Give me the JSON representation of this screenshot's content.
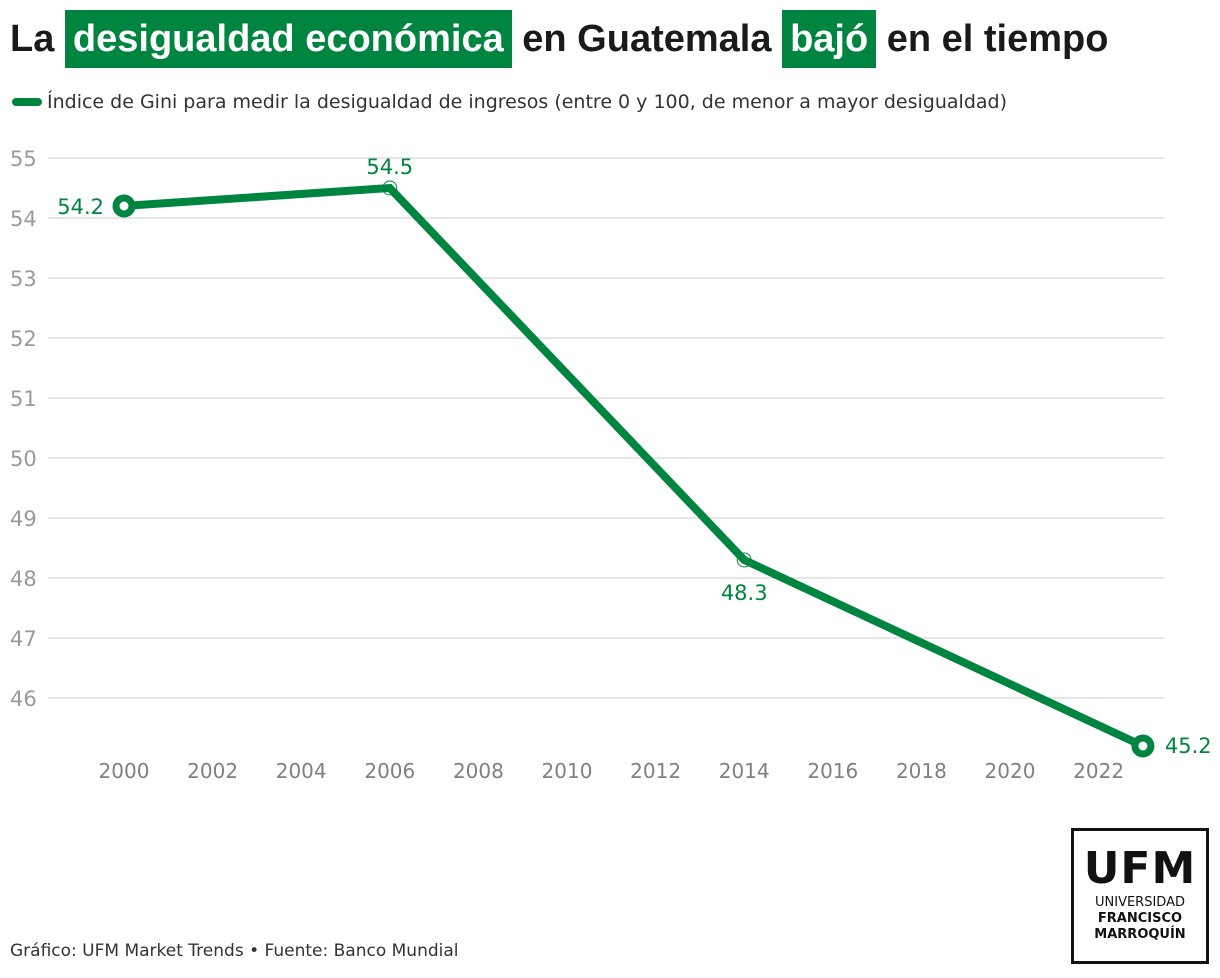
{
  "title": {
    "part1": "La",
    "highlight1": "desigualdad económica",
    "part2": "en Guatemala",
    "highlight2": "bajó",
    "part3": "en el tiempo"
  },
  "colors": {
    "accent": "#008540",
    "grid": "#e6e6e6",
    "axis_text": "#999999",
    "text": "#1a1a1a"
  },
  "footer": {
    "text": "Gráfico: UFM Market Trends • Fuente: Banco Mundial"
  },
  "logo": {
    "big": "UFM",
    "line1": "UNIVERSIDAD",
    "line2": "FRANCISCO",
    "line3": "MARROQUÍN"
  },
  "chart_data": {
    "type": "line",
    "title": "La desigualdad económica en Guatemala bajó en el tiempo",
    "xlabel": "",
    "ylabel": "",
    "legend": {
      "position": "top-left",
      "entries": [
        "Índice de Gini para medir la desigualdad de ingresos (entre 0 y 100, de menor a mayor desigualdad)"
      ]
    },
    "grid": true,
    "xlim": [
      2000,
      2023
    ],
    "ylim": [
      45.2,
      55
    ],
    "x_ticks": [
      2000,
      2002,
      2004,
      2006,
      2008,
      2010,
      2012,
      2014,
      2016,
      2018,
      2020,
      2022
    ],
    "y_ticks": [
      46,
      47,
      48,
      49,
      50,
      51,
      52,
      53,
      54,
      55
    ],
    "series": [
      {
        "name": "Índice de Gini para medir la desigualdad de ingresos (entre 0 y 100, de menor a mayor desigualdad)",
        "x": [
          2000,
          2006,
          2014,
          2023
        ],
        "values": [
          54.2,
          54.5,
          48.3,
          45.2
        ],
        "labels": [
          "54.2",
          "54.5",
          "48.3",
          "45.2"
        ],
        "color": "#008540"
      }
    ]
  }
}
